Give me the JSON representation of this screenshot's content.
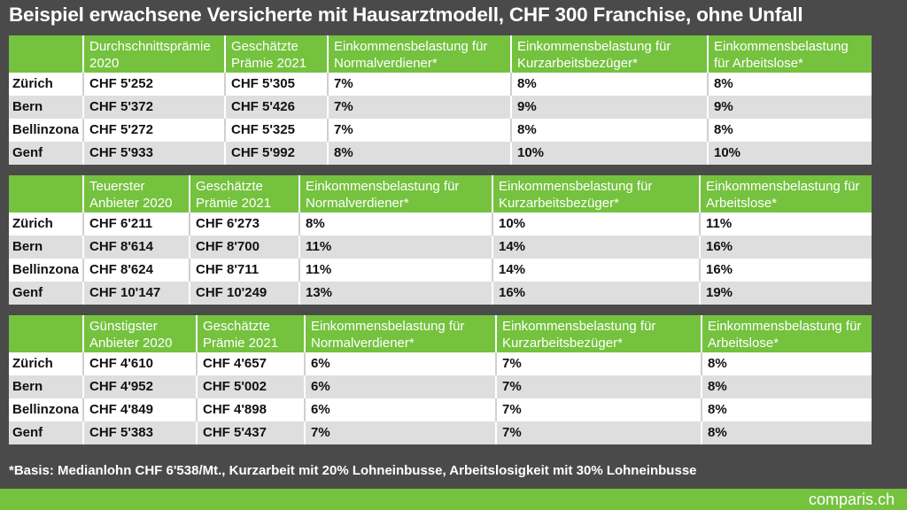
{
  "title": "Beispiel erwachsene Versicherte mit Hausarztmodell, CHF 300 Franchise, ohne Unfall",
  "tables": [
    {
      "headers": [
        "",
        "Durchschnittsprämie 2020",
        "Geschätzte Prämie 2021",
        "Einkommensbelastung für Normalverdiener*",
        "Einkommensbelastung für Kurzarbeitsbezüger*",
        "Einkommensbelastung für Arbeitslose*"
      ],
      "rows": [
        [
          "Zürich",
          "CHF 5'252",
          "CHF 5'305",
          "7%",
          "8%",
          "8%"
        ],
        [
          "Bern",
          "CHF 5'372",
          "CHF 5'426",
          "7%",
          "9%",
          "9%"
        ],
        [
          "Bellinzona",
          "CHF 5'272",
          "CHF 5'325",
          "7%",
          "8%",
          "8%"
        ],
        [
          "Genf",
          "CHF 5'933",
          "CHF 5'992",
          "8%",
          "10%",
          "10%"
        ]
      ]
    },
    {
      "headers": [
        "",
        "Teuerster Anbieter 2020",
        "Geschätzte Prämie 2021",
        "Einkommensbelastung für Normalverdiener*",
        "Einkommensbelastung für Kurzarbeitsbezüger*",
        "Einkommensbelastung für Arbeitslose*"
      ],
      "rows": [
        [
          "Zürich",
          "CHF 6'211",
          "CHF 6'273",
          "8%",
          "10%",
          "11%"
        ],
        [
          "Bern",
          "CHF 8'614",
          "CHF 8'700",
          "11%",
          "14%",
          "16%"
        ],
        [
          "Bellinzona",
          "CHF 8'624",
          "CHF 8'711",
          "11%",
          "14%",
          "16%"
        ],
        [
          "Genf",
          "CHF 10'147",
          "CHF 10'249",
          "13%",
          "16%",
          "19%"
        ]
      ]
    },
    {
      "headers": [
        "",
        "Günstigster Anbieter 2020",
        "Geschätzte Prämie 2021",
        "Einkommensbelastung für Normalverdiener*",
        "Einkommensbelastung für Kurzarbeitsbezüger*",
        "Einkommensbelastung für Arbeitslose*"
      ],
      "rows": [
        [
          "Zürich",
          "CHF 4'610",
          "CHF 4'657",
          "6%",
          "7%",
          "8%"
        ],
        [
          "Bern",
          "CHF 4'952",
          "CHF 5'002",
          "6%",
          "7%",
          "8%"
        ],
        [
          "Bellinzona",
          "CHF 4'849",
          "CHF 4'898",
          "6%",
          "7%",
          "8%"
        ],
        [
          "Genf",
          "CHF 5'383",
          "CHF 5'437",
          "7%",
          "7%",
          "8%"
        ]
      ]
    }
  ],
  "footnote": "*Basis: Medianlohn CHF 6'538/Mt., Kurzarbeit mit 20% Lohneinbusse, Arbeitslosigkeit mit 30% Lohneinbusse",
  "logo": "comparis.ch",
  "colors": {
    "accent": "#74c23e",
    "background": "#4a4a4a",
    "row_alt": "#dedede"
  }
}
